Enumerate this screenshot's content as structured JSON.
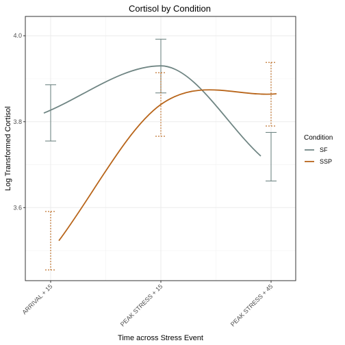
{
  "chart_data": {
    "type": "line",
    "title": "Cortisol by Condition",
    "xlabel": "Time across Stress Event",
    "ylabel": "Log Transformed Cortisol",
    "categories": [
      "ARRIVAL + 15",
      "PEAK STRESS + 15",
      "PEAK STRESS + 45"
    ],
    "y_ticks": [
      "3.6",
      "3.8",
      "4.0"
    ],
    "y_tick_values": [
      3.6,
      3.8,
      4.0
    ],
    "ylim": [
      3.43,
      4.045
    ],
    "grid": true,
    "legend_title": "Condition",
    "legend_position": "right",
    "series": [
      {
        "name": "SF",
        "color": "#6f8583",
        "line_style": "solid",
        "smooth": true,
        "values": [
          3.82,
          3.93,
          3.72
        ],
        "error_low": [
          3.755,
          3.867,
          3.662
        ],
        "error_high": [
          3.886,
          3.992,
          3.775
        ]
      },
      {
        "name": "SSP",
        "color": "#b8651a",
        "line_style": "dotted-errorbars",
        "smooth": true,
        "values": [
          3.523,
          3.84,
          3.865
        ],
        "error_low": [
          3.455,
          3.766,
          3.79
        ],
        "error_high": [
          3.591,
          3.914,
          3.938
        ]
      }
    ]
  }
}
